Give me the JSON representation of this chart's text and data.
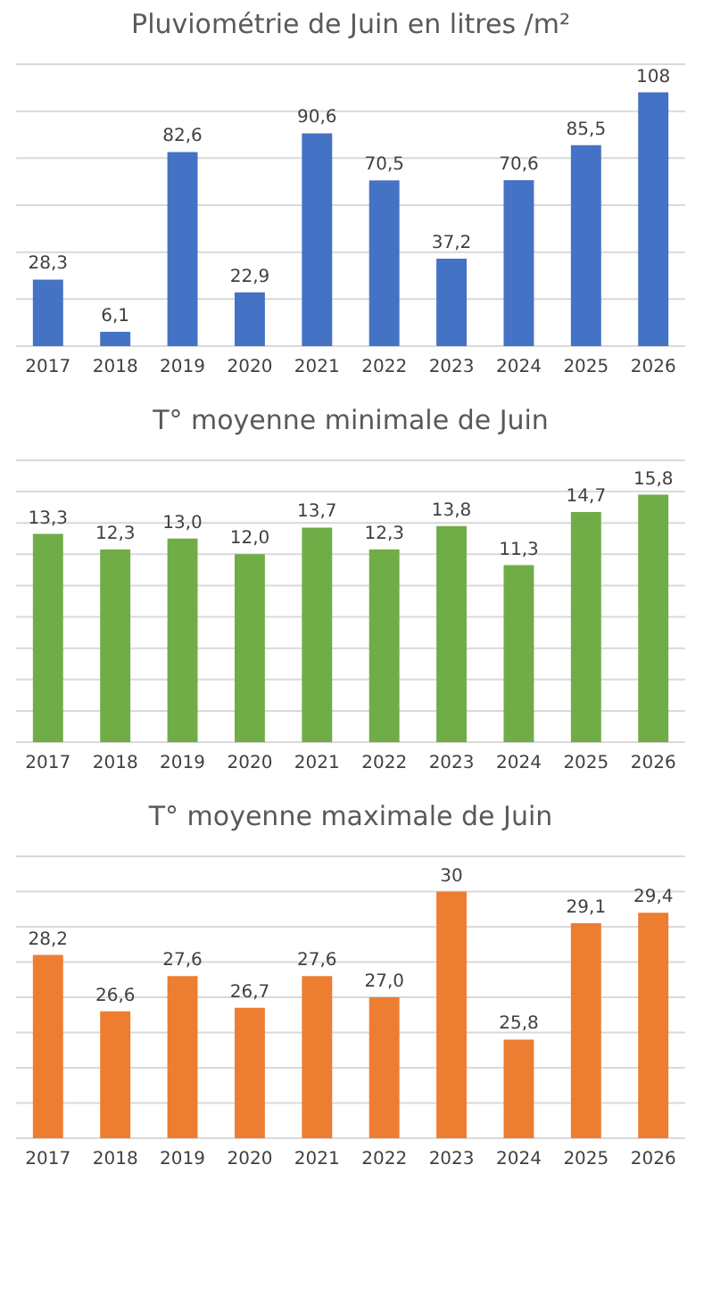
{
  "chart_data": [
    {
      "type": "bar",
      "title": "Pluviométrie de Juin en litres /m²",
      "categories": [
        "2017",
        "2018",
        "2019",
        "2020",
        "2021",
        "2022",
        "2023",
        "2024",
        "2025",
        "2026"
      ],
      "values": [
        28.3,
        6.1,
        82.6,
        22.9,
        90.6,
        70.5,
        37.2,
        70.6,
        85.5,
        108
      ],
      "value_labels": [
        "28,3",
        "6,1",
        "82,6",
        "22,9",
        "90,6",
        "70,5",
        "37,2",
        "70,6",
        "85,5",
        "108"
      ],
      "color": "#4472c4",
      "ylim": [
        0,
        120
      ],
      "yticks": [
        {
          "value": 0,
          "label": null
        },
        {
          "value": 20,
          "label": null
        },
        {
          "value": 40,
          "label": null
        },
        {
          "value": 60,
          "label": null
        },
        {
          "value": 80,
          "label": null
        },
        {
          "value": 100,
          "label": null
        },
        {
          "value": 120,
          "label": null
        }
      ],
      "grid": "y",
      "tick_labels": "x"
    },
    {
      "type": "bar",
      "title": "T° moyenne minimale de Juin",
      "categories": [
        "2017",
        "2018",
        "2019",
        "2020",
        "2021",
        "2022",
        "2023",
        "2024",
        "2025",
        "2026"
      ],
      "values": [
        13.3,
        12.3,
        13.0,
        12.0,
        13.7,
        12.3,
        13.8,
        11.3,
        14.7,
        15.8
      ],
      "value_labels": [
        "13,3",
        "12,3",
        "13,0",
        "12,0",
        "13,7",
        "12,3",
        "13,8",
        "11,3",
        "14,7",
        "15,8"
      ],
      "color": "#70ad47",
      "ylim": [
        0,
        18
      ],
      "yticks": [
        {
          "value": 0,
          "label": null
        },
        {
          "value": 2,
          "label": null
        },
        {
          "value": 4,
          "label": null
        },
        {
          "value": 6,
          "label": null
        },
        {
          "value": 8,
          "label": null
        },
        {
          "value": 10,
          "label": null
        },
        {
          "value": 12,
          "label": null
        },
        {
          "value": 14,
          "label": null
        },
        {
          "value": 16,
          "label": null
        },
        {
          "value": 18,
          "label": null
        }
      ],
      "grid": "y",
      "tick_labels": "x"
    },
    {
      "type": "bar",
      "title": "T° moyenne maximale de Juin",
      "categories": [
        "2017",
        "2018",
        "2019",
        "2020",
        "2021",
        "2022",
        "2023",
        "2024",
        "2025",
        "2026"
      ],
      "values": [
        28.2,
        26.6,
        27.6,
        26.7,
        27.6,
        27.0,
        30,
        25.8,
        29.1,
        29.4
      ],
      "value_labels": [
        "28,2",
        "26,6",
        "27,6",
        "26,7",
        "27,6",
        "27,0",
        "30",
        "25,8",
        "29,1",
        "29,4"
      ],
      "color": "#ed7d31",
      "ylim": [
        23,
        31
      ],
      "yticks": [
        {
          "value": 23,
          "label": null
        },
        {
          "value": 24,
          "label": null
        },
        {
          "value": 25,
          "label": null
        },
        {
          "value": 26,
          "label": null
        },
        {
          "value": 27,
          "label": null
        },
        {
          "value": 28,
          "label": null
        },
        {
          "value": 29,
          "label": null
        },
        {
          "value": 30,
          "label": null
        },
        {
          "value": 31,
          "label": null
        }
      ],
      "grid": "y",
      "tick_labels": "x"
    }
  ]
}
